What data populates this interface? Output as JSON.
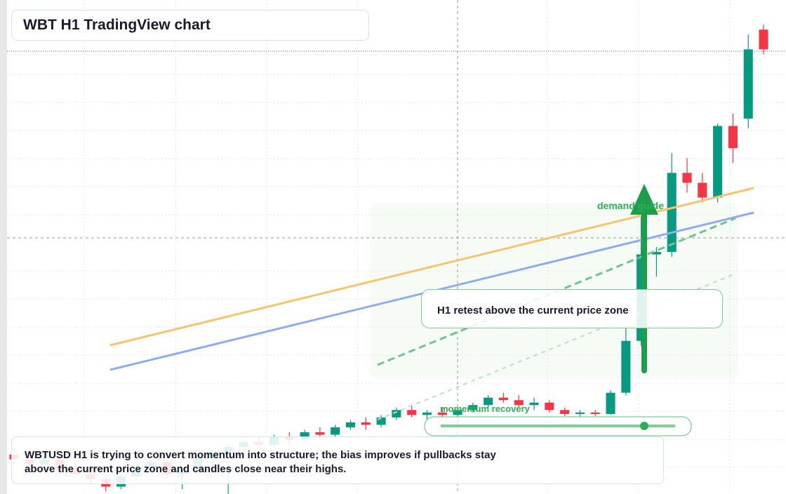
{
  "header": {
    "title": "WBT H1 TradingView chart"
  },
  "chart_data": {
    "type": "candlestick",
    "ylim": [
      0,
      100
    ],
    "up_color": "#089981",
    "down_color": "#f23645",
    "open": [
      8,
      7,
      6,
      7,
      5,
      4,
      3,
      1.5,
      3.5,
      5.5,
      6.5,
      4,
      5,
      7.5,
      8.5,
      9.5,
      10.5,
      10,
      11.5,
      11,
      12.5,
      12,
      13.5,
      14.5,
      14,
      15.5,
      17,
      16,
      16.5,
      16,
      17,
      18,
      19.5,
      19,
      18,
      18.5,
      17,
      16.2,
      16.5,
      16.2,
      20.5,
      31,
      48.5,
      49,
      65,
      63,
      60,
      74.5,
      76,
      94
    ],
    "high": [
      9,
      8,
      7.5,
      8,
      6,
      5.5,
      4,
      4,
      6,
      7,
      7,
      6,
      8,
      9,
      10,
      11,
      11.5,
      12,
      12.5,
      13,
      13.5,
      14,
      15,
      15.5,
      16,
      17.5,
      18,
      17,
      17.5,
      17.5,
      18.5,
      20,
      20.5,
      20,
      19.5,
      19,
      17.5,
      17,
      17,
      21,
      34,
      57,
      50,
      69,
      68,
      65,
      75,
      77,
      93,
      95
    ],
    "low": [
      6,
      5,
      5,
      4.5,
      3,
      2,
      0.5,
      1,
      3,
      4,
      3,
      1,
      4.5,
      6,
      0,
      8,
      9,
      9.5,
      10,
      10.5,
      11,
      11.5,
      13,
      13,
      13.5,
      15,
      15.5,
      15,
      15.5,
      15.5,
      16.5,
      17.5,
      18.5,
      17.5,
      17,
      16.5,
      15.8,
      15.5,
      15.8,
      16,
      20,
      30,
      44,
      48,
      61,
      59,
      59,
      67,
      74,
      89
    ],
    "close": [
      7,
      6,
      7,
      5,
      4,
      3,
      1.5,
      3.5,
      5.5,
      6.5,
      4,
      5,
      7.5,
      8.5,
      9.5,
      10.5,
      10,
      11.5,
      11,
      12.5,
      12,
      13.5,
      14.5,
      14,
      15.5,
      17,
      16,
      16.5,
      16,
      17,
      18,
      19.5,
      19,
      18,
      18.5,
      17,
      16.2,
      16.5,
      16.2,
      20.5,
      31,
      48.5,
      49,
      65,
      63,
      60,
      74.5,
      70,
      90,
      90
    ]
  },
  "annotations": {
    "demand": "demand guide",
    "retest": "H1 retest above the current price zone",
    "momentum": "momentum recovery"
  },
  "caption": "WBTUSD H1 is trying to convert momentum into structure; the bias improves if pullbacks stay above the current price zone and candles close near their highs."
}
